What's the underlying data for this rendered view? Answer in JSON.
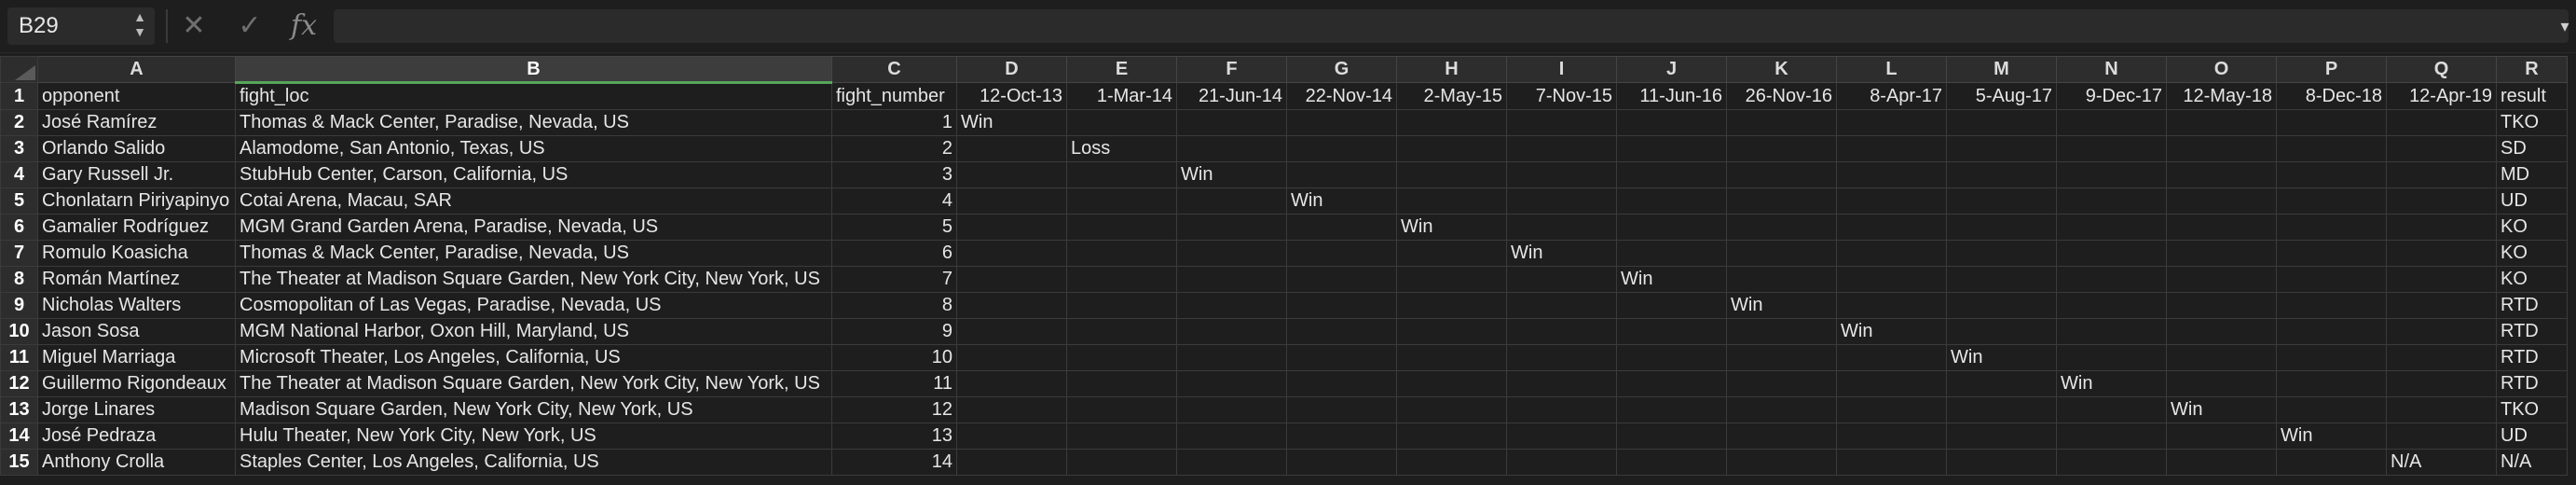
{
  "formula_bar": {
    "cell_ref": "B29",
    "formula": "",
    "cancel_icon": "✕",
    "enter_icon": "✓",
    "fx_label": "fx"
  },
  "columns": [
    "A",
    "B",
    "C",
    "D",
    "E",
    "F",
    "G",
    "H",
    "I",
    "J",
    "K",
    "L",
    "M",
    "N",
    "O",
    "P",
    "Q",
    "R"
  ],
  "selected_column": "B",
  "header_row": [
    "opponent",
    "fight_loc",
    "fight_number",
    "12-Oct-13",
    "1-Mar-14",
    "21-Jun-14",
    "22-Nov-14",
    "2-May-15",
    "7-Nov-15",
    "11-Jun-16",
    "26-Nov-16",
    "8-Apr-17",
    "5-Aug-17",
    "9-Dec-17",
    "12-May-18",
    "8-Dec-18",
    "12-Apr-19",
    "result"
  ],
  "rows": [
    {
      "n": "2",
      "cells": [
        "José Ramírez",
        "Thomas & Mack Center, Paradise, Nevada, US",
        "1",
        "Win",
        "",
        "",
        "",
        "",
        "",
        "",
        "",
        "",
        "",
        "",
        "",
        "",
        "",
        "TKO"
      ]
    },
    {
      "n": "3",
      "cells": [
        "Orlando Salido",
        "Alamodome, San Antonio, Texas, US",
        "2",
        "",
        "Loss",
        "",
        "",
        "",
        "",
        "",
        "",
        "",
        "",
        "",
        "",
        "",
        "",
        "SD"
      ]
    },
    {
      "n": "4",
      "cells": [
        "Gary Russell Jr.",
        "StubHub Center, Carson, California, US",
        "3",
        "",
        "",
        "Win",
        "",
        "",
        "",
        "",
        "",
        "",
        "",
        "",
        "",
        "",
        "",
        "MD"
      ]
    },
    {
      "n": "5",
      "cells": [
        "Chonlatarn Piriyapinyo",
        "Cotai Arena, Macau, SAR",
        "4",
        "",
        "",
        "",
        "Win",
        "",
        "",
        "",
        "",
        "",
        "",
        "",
        "",
        "",
        "",
        "UD"
      ]
    },
    {
      "n": "6",
      "cells": [
        "Gamalier Rodríguez",
        "MGM Grand Garden Arena, Paradise, Nevada, US",
        "5",
        "",
        "",
        "",
        "",
        "Win",
        "",
        "",
        "",
        "",
        "",
        "",
        "",
        "",
        "",
        "KO"
      ]
    },
    {
      "n": "7",
      "cells": [
        "Romulo Koasicha",
        "Thomas & Mack Center, Paradise, Nevada, US",
        "6",
        "",
        "",
        "",
        "",
        "",
        "Win",
        "",
        "",
        "",
        "",
        "",
        "",
        "",
        "",
        "KO"
      ]
    },
    {
      "n": "8",
      "cells": [
        "Román Martínez",
        "The Theater at Madison Square Garden, New York City, New York, US",
        "7",
        "",
        "",
        "",
        "",
        "",
        "",
        "Win",
        "",
        "",
        "",
        "",
        "",
        "",
        "",
        "KO"
      ]
    },
    {
      "n": "9",
      "cells": [
        "Nicholas Walters",
        "Cosmopolitan of Las Vegas, Paradise, Nevada, US",
        "8",
        "",
        "",
        "",
        "",
        "",
        "",
        "",
        "Win",
        "",
        "",
        "",
        "",
        "",
        "",
        "RTD"
      ]
    },
    {
      "n": "10",
      "cells": [
        "Jason Sosa",
        "MGM National Harbor, Oxon Hill, Maryland, US",
        "9",
        "",
        "",
        "",
        "",
        "",
        "",
        "",
        "",
        "Win",
        "",
        "",
        "",
        "",
        "",
        "RTD"
      ]
    },
    {
      "n": "11",
      "cells": [
        "Miguel Marriaga",
        "Microsoft Theater, Los Angeles, California, US",
        "10",
        "",
        "",
        "",
        "",
        "",
        "",
        "",
        "",
        "",
        "Win",
        "",
        "",
        "",
        "",
        "RTD"
      ]
    },
    {
      "n": "12",
      "cells": [
        "Guillermo Rigondeaux",
        "The Theater at Madison Square Garden, New York City, New York, US",
        "11",
        "",
        "",
        "",
        "",
        "",
        "",
        "",
        "",
        "",
        "",
        "Win",
        "",
        "",
        "",
        "RTD"
      ]
    },
    {
      "n": "13",
      "cells": [
        "Jorge Linares",
        "Madison Square Garden, New York City, New York, US",
        "12",
        "",
        "",
        "",
        "",
        "",
        "",
        "",
        "",
        "",
        "",
        "",
        "Win",
        "",
        "",
        "TKO"
      ]
    },
    {
      "n": "14",
      "cells": [
        "José Pedraza",
        "Hulu Theater, New York City, New York, US",
        "13",
        "",
        "",
        "",
        "",
        "",
        "",
        "",
        "",
        "",
        "",
        "",
        "",
        "Win",
        "",
        "UD"
      ]
    },
    {
      "n": "15",
      "cells": [
        "Anthony Crolla",
        "Staples Center, Los Angeles, California, US",
        "14",
        "",
        "",
        "",
        "",
        "",
        "",
        "",
        "",
        "",
        "",
        "",
        "",
        "",
        "N/A",
        "N/A"
      ]
    }
  ]
}
